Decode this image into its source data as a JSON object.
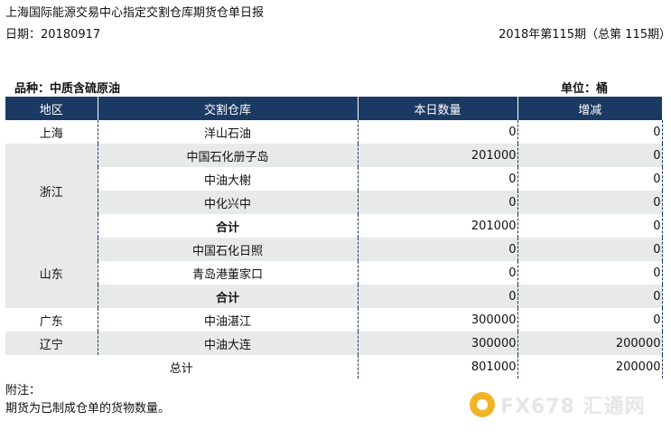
{
  "header": {
    "title": "上海国际能源交易中心指定交割仓库期货仓单日报",
    "date": "日期：20180917",
    "issue": "2018年第115期（总第 115期）"
  },
  "meta": {
    "variety": "品种：中质含硫原油",
    "unit": "单位：桶"
  },
  "table": {
    "headers": [
      "地区",
      "交割仓库",
      "本日数量",
      "增减"
    ],
    "rows": [
      {
        "region": "上海",
        "warehouse": "洋山石油",
        "qty": "0",
        "change": "0"
      },
      {
        "region": "浙江",
        "warehouse": "中国石化册子岛",
        "qty": "201000",
        "change": "0"
      },
      {
        "region": "",
        "warehouse": "中油大榭",
        "qty": "0",
        "change": "0"
      },
      {
        "region": "",
        "warehouse": "中化兴中",
        "qty": "0",
        "change": "0"
      },
      {
        "region": "",
        "warehouse": "合计",
        "qty": "201000",
        "change": "0"
      },
      {
        "region": "山东",
        "warehouse": "中国石化日照",
        "qty": "0",
        "change": "0"
      },
      {
        "region": "",
        "warehouse": "青岛港董家口",
        "qty": "0",
        "change": "0"
      },
      {
        "region": "",
        "warehouse": "合计",
        "qty": "0",
        "change": "0"
      },
      {
        "region": "广东",
        "warehouse": "中油湛江",
        "qty": "300000",
        "change": "0"
      },
      {
        "region": "辽宁",
        "warehouse": "中油大连",
        "qty": "300000",
        "change": "200000"
      }
    ],
    "total": {
      "label": "总计",
      "qty": "801000",
      "change": "200000"
    }
  },
  "notes": {
    "label": "附注：",
    "text": "期货为已制成仓单的货物数量。"
  },
  "watermark": {
    "text": "FX678 汇通网",
    "colors": {
      "logo": "#f0b429",
      "text": "#e6e6e6"
    }
  },
  "colors": {
    "header_bg": "#1b3a63",
    "row_shade": "#e8eaea"
  }
}
